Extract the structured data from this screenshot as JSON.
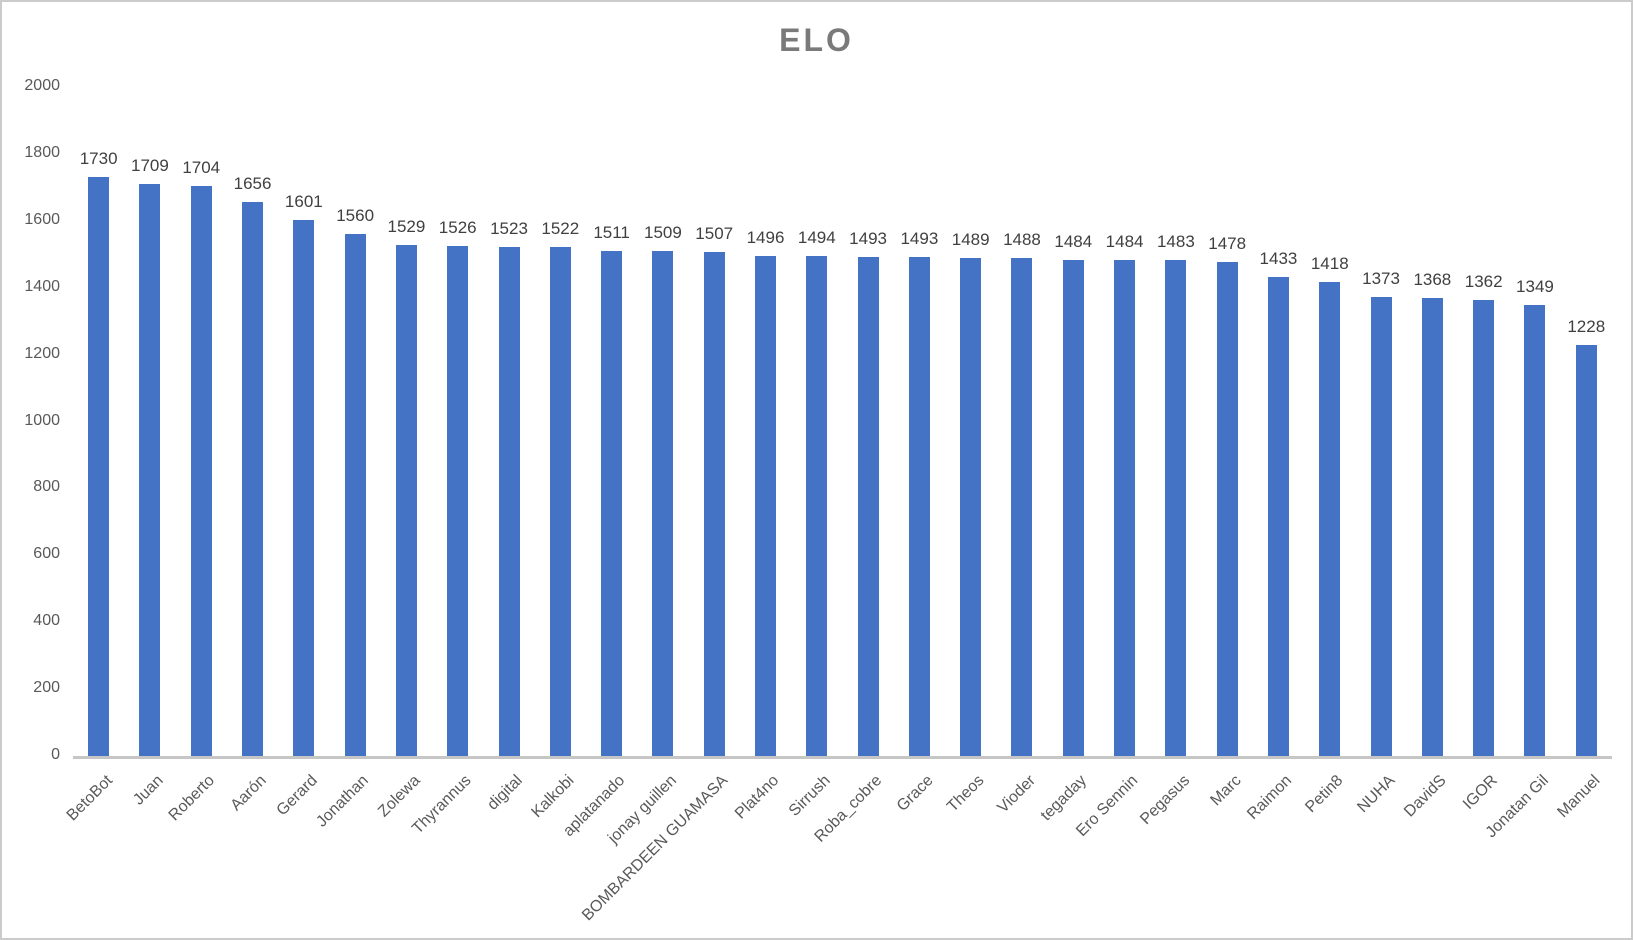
{
  "title": "ELO",
  "chart_data": {
    "type": "bar",
    "title": "ELO",
    "categories": [
      "BetoBot",
      "Juan",
      "Roberto",
      "Aarón",
      "Gerard",
      "Jonathan",
      "Zolewa",
      "Thyrannus",
      "digital",
      "Kalkobi",
      "aplatanado",
      "jonay guillen",
      "BOMBARDEEN GUAMASA",
      "Plat4no",
      "Sirrush",
      "Roba_cobre",
      "Grace",
      "Theos",
      "Vioder",
      "tegaday",
      "Ero Sennin",
      "Pegasus",
      "Marc",
      "Raimon",
      "Petin8",
      "NUHA",
      "DavidS",
      "IGOR",
      "Jonatan Gil",
      "Manuel"
    ],
    "values": [
      1730,
      1709,
      1704,
      1656,
      1601,
      1560,
      1529,
      1526,
      1523,
      1522,
      1511,
      1509,
      1507,
      1496,
      1494,
      1493,
      1493,
      1489,
      1488,
      1484,
      1484,
      1483,
      1478,
      1433,
      1418,
      1373,
      1368,
      1362,
      1349,
      1228
    ],
    "xlabel": "",
    "ylabel": "",
    "ylim": [
      0,
      2000
    ],
    "yticks": [
      0,
      200,
      400,
      600,
      800,
      1000,
      1200,
      1400,
      1600,
      1800,
      2000
    ],
    "grid": false,
    "legend_position": "none",
    "data_labels": true
  },
  "colors": {
    "bar": "#4473c5",
    "title_text": "#7a7a7a",
    "axis_text": "#595959",
    "data_label_text": "#404040",
    "axis_line": "#c6c6c6",
    "page_border": "#cbcbcb",
    "background": "#ffffff"
  }
}
